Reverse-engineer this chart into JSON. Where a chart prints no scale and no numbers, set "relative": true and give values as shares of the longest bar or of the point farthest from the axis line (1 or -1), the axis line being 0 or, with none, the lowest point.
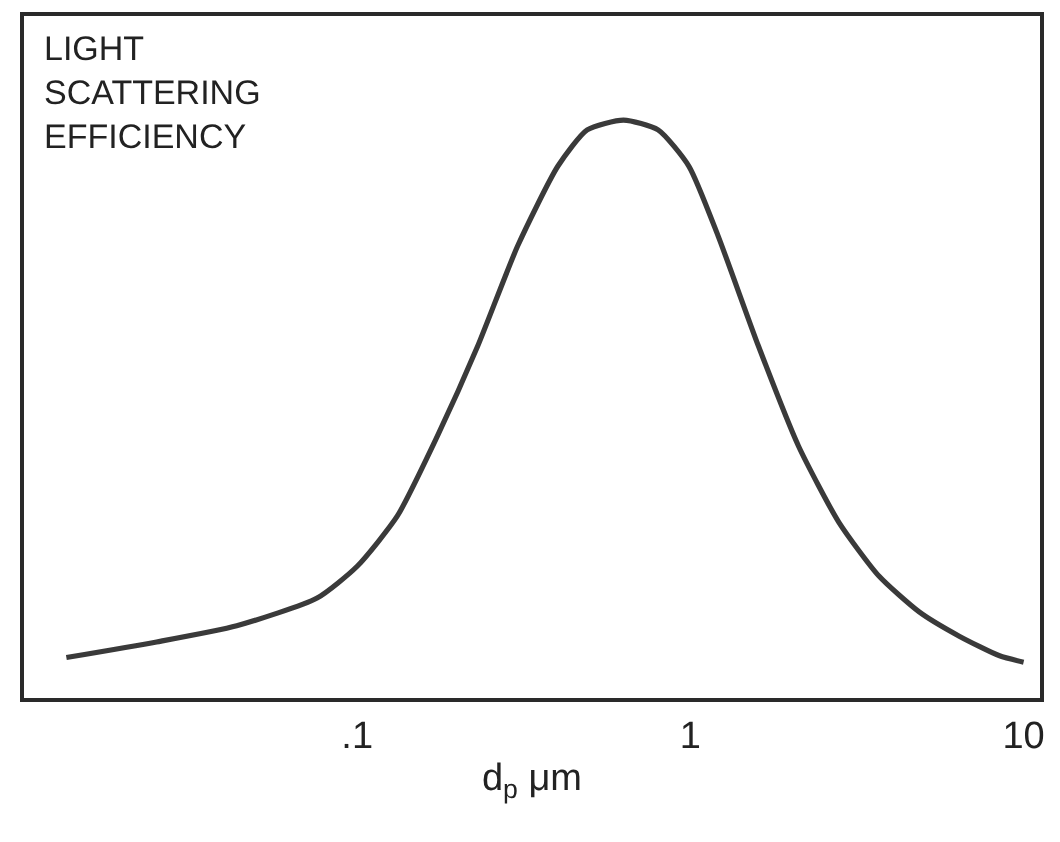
{
  "chart_data": {
    "type": "line",
    "relative": true,
    "log": "x",
    "xlabel": "d$_{p}$ μm",
    "annotations": [
      "LIGHT\nSCATTERING\nEFFICIENCY"
    ],
    "xlim": [
      0.01,
      11.2
    ],
    "xticks": [
      {
        "value": 0.1,
        "label": ".1"
      },
      1,
      10
    ],
    "tick_labels": "x",
    "x": [
      0.0134,
      0.025,
      0.0435,
      0.0758,
      0.1,
      0.132,
      0.174,
      0.23,
      0.303,
      0.4,
      0.49,
      0.63,
      0.8,
      0.99,
      1.21,
      1.6,
      2.11,
      2.79,
      3.68,
      4.86,
      6.41,
      8.47,
      10
    ],
    "series": [
      {
        "color": "#3a3a3a",
        "values": [
          0.07,
          0.097,
          0.125,
          0.173,
          0.228,
          0.315,
          0.453,
          0.609,
          0.782,
          0.92,
          0.983,
          1,
          0.983,
          0.92,
          0.8,
          0.609,
          0.436,
          0.304,
          0.211,
          0.149,
          0.107,
          0.073,
          0.062
        ]
      }
    ]
  }
}
